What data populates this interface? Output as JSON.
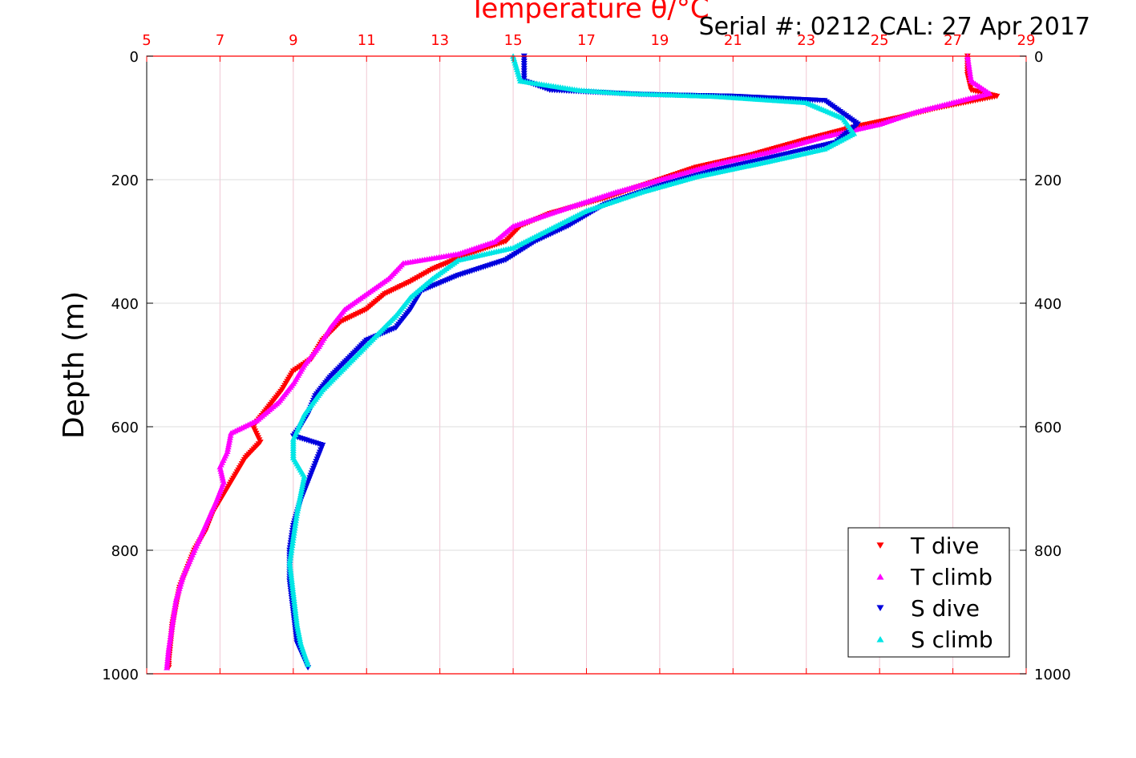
{
  "chart_data": {
    "type": "scatter",
    "title": "Serial #: 0212  CAL: 27 Apr 2017",
    "x_axis_title": "Temperature θ/°C",
    "ylabel": "Depth (m)",
    "xlim": [
      5,
      29
    ],
    "ylim": [
      0,
      1000
    ],
    "y_reversed": true,
    "x_ticks": [
      "5",
      "7",
      "9",
      "11",
      "13",
      "15",
      "17",
      "19",
      "21",
      "23",
      "25",
      "27",
      "29"
    ],
    "y_ticks": [
      "0",
      "200",
      "400",
      "600",
      "800",
      "1000"
    ],
    "grid": true,
    "legend_position": "bottom-right",
    "colors": {
      "axis_top": "#ff0000",
      "grid": "#e0c8d0",
      "legend_border": "#000000"
    },
    "series": [
      {
        "name": "T dive",
        "marker": "triangle-down",
        "color": "#ff0000",
        "points": [
          [
            27.4,
            0
          ],
          [
            27.4,
            30
          ],
          [
            27.5,
            55
          ],
          [
            28.2,
            65
          ],
          [
            26.5,
            85
          ],
          [
            25.5,
            100
          ],
          [
            24.3,
            115
          ],
          [
            23.0,
            135
          ],
          [
            21.5,
            160
          ],
          [
            20.0,
            180
          ],
          [
            19.0,
            200
          ],
          [
            17.5,
            230
          ],
          [
            16.0,
            255
          ],
          [
            15.2,
            275
          ],
          [
            14.8,
            300
          ],
          [
            13.8,
            320
          ],
          [
            12.8,
            345
          ],
          [
            12.2,
            365
          ],
          [
            11.5,
            385
          ],
          [
            11.0,
            410
          ],
          [
            10.3,
            430
          ],
          [
            9.8,
            460
          ],
          [
            9.5,
            490
          ],
          [
            9.0,
            510
          ],
          [
            8.7,
            540
          ],
          [
            8.3,
            570
          ],
          [
            7.9,
            600
          ],
          [
            8.1,
            625
          ],
          [
            7.7,
            650
          ],
          [
            7.4,
            680
          ],
          [
            7.1,
            710
          ],
          [
            6.8,
            740
          ],
          [
            6.6,
            770
          ],
          [
            6.3,
            800
          ],
          [
            6.1,
            830
          ],
          [
            5.9,
            860
          ],
          [
            5.8,
            890
          ],
          [
            5.7,
            920
          ],
          [
            5.65,
            950
          ],
          [
            5.6,
            980
          ],
          [
            5.6,
            990
          ]
        ]
      },
      {
        "name": "T climb",
        "marker": "triangle-up",
        "color": "#ff00ff",
        "points": [
          [
            27.4,
            0
          ],
          [
            27.5,
            40
          ],
          [
            28.0,
            60
          ],
          [
            26.0,
            90
          ],
          [
            25.0,
            110
          ],
          [
            23.5,
            130
          ],
          [
            22.0,
            155
          ],
          [
            20.5,
            175
          ],
          [
            19.3,
            195
          ],
          [
            17.8,
            220
          ],
          [
            16.5,
            245
          ],
          [
            15.0,
            275
          ],
          [
            14.5,
            300
          ],
          [
            13.5,
            320
          ],
          [
            12.0,
            335
          ],
          [
            11.6,
            360
          ],
          [
            11.0,
            385
          ],
          [
            10.4,
            410
          ],
          [
            10.0,
            440
          ],
          [
            9.7,
            470
          ],
          [
            9.3,
            500
          ],
          [
            9.0,
            530
          ],
          [
            8.6,
            560
          ],
          [
            8.0,
            590
          ],
          [
            7.3,
            610
          ],
          [
            7.2,
            640
          ],
          [
            7.0,
            665
          ],
          [
            7.1,
            690
          ],
          [
            6.9,
            720
          ],
          [
            6.6,
            760
          ],
          [
            6.3,
            800
          ],
          [
            6.0,
            840
          ],
          [
            5.8,
            880
          ],
          [
            5.7,
            920
          ],
          [
            5.6,
            960
          ],
          [
            5.55,
            990
          ]
        ]
      },
      {
        "name": "S dive",
        "marker": "triangle-down",
        "color": "#0000dd",
        "points": [
          [
            15.3,
            0
          ],
          [
            15.3,
            40
          ],
          [
            16.0,
            55
          ],
          [
            18.5,
            62
          ],
          [
            21.0,
            65
          ],
          [
            23.5,
            72
          ],
          [
            24.4,
            110
          ],
          [
            23.8,
            140
          ],
          [
            22.0,
            165
          ],
          [
            20.5,
            185
          ],
          [
            19.0,
            210
          ],
          [
            17.5,
            240
          ],
          [
            16.5,
            275
          ],
          [
            15.6,
            300
          ],
          [
            14.8,
            330
          ],
          [
            13.5,
            355
          ],
          [
            12.5,
            380
          ],
          [
            12.2,
            410
          ],
          [
            11.8,
            440
          ],
          [
            11.0,
            460
          ],
          [
            10.5,
            490
          ],
          [
            10.0,
            520
          ],
          [
            9.6,
            550
          ],
          [
            9.4,
            580
          ],
          [
            9.2,
            600
          ],
          [
            9.0,
            615
          ],
          [
            9.8,
            630
          ],
          [
            9.6,
            660
          ],
          [
            9.4,
            690
          ],
          [
            9.2,
            720
          ],
          [
            9.0,
            760
          ],
          [
            8.9,
            800
          ],
          [
            8.9,
            850
          ],
          [
            9.0,
            900
          ],
          [
            9.1,
            950
          ],
          [
            9.4,
            990
          ]
        ]
      },
      {
        "name": "S climb",
        "marker": "triangle-up",
        "color": "#00e5e5",
        "points": [
          [
            15.0,
            0
          ],
          [
            15.2,
            40
          ],
          [
            16.8,
            55
          ],
          [
            18.0,
            60
          ],
          [
            20.5,
            65
          ],
          [
            23.0,
            75
          ],
          [
            24.0,
            100
          ],
          [
            24.3,
            125
          ],
          [
            23.5,
            150
          ],
          [
            22.0,
            170
          ],
          [
            20.0,
            195
          ],
          [
            18.5,
            220
          ],
          [
            17.0,
            250
          ],
          [
            16.0,
            280
          ],
          [
            15.0,
            310
          ],
          [
            13.5,
            330
          ],
          [
            12.8,
            360
          ],
          [
            12.2,
            390
          ],
          [
            11.8,
            420
          ],
          [
            11.3,
            450
          ],
          [
            10.8,
            480
          ],
          [
            10.3,
            510
          ],
          [
            9.8,
            540
          ],
          [
            9.3,
            580
          ],
          [
            9.0,
            620
          ],
          [
            9.0,
            650
          ],
          [
            9.3,
            680
          ],
          [
            9.2,
            710
          ],
          [
            9.1,
            740
          ],
          [
            9.0,
            780
          ],
          [
            8.9,
            820
          ],
          [
            9.0,
            870
          ],
          [
            9.1,
            920
          ],
          [
            9.2,
            950
          ],
          [
            9.4,
            985
          ]
        ]
      }
    ]
  }
}
